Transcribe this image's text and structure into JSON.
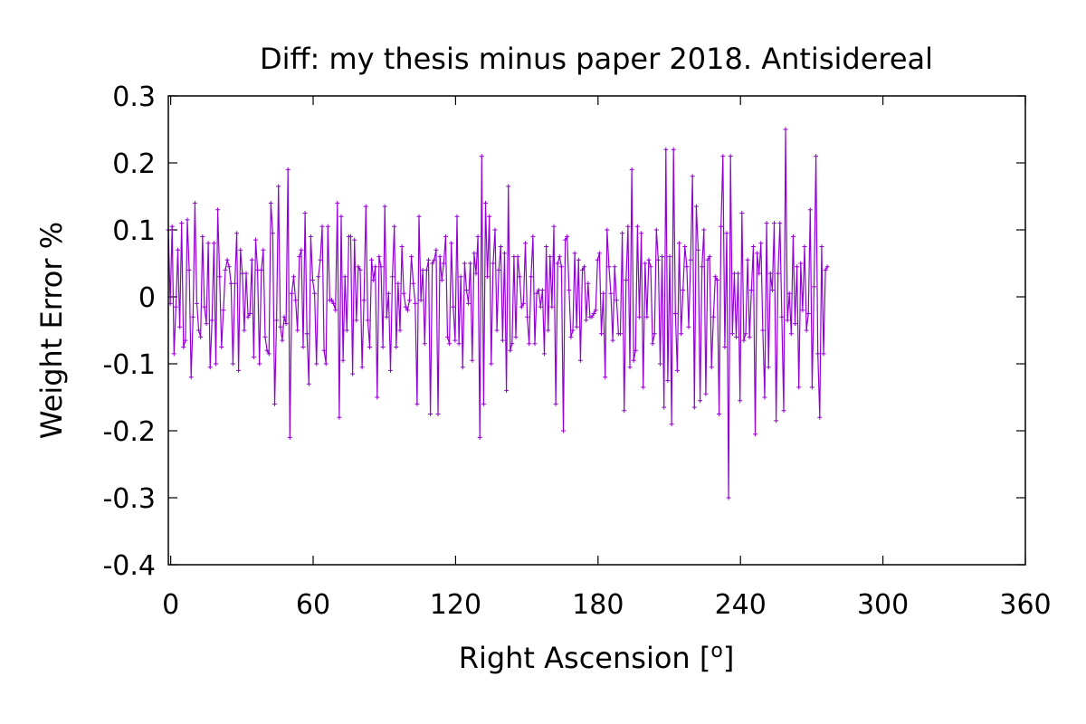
{
  "chart_data": {
    "type": "line",
    "title": "Diff:  my thesis minus paper 2018. Antisidereal",
    "xlabel_main": "Right Ascension [",
    "xlabel_sup": "o",
    "xlabel_end": "]",
    "ylabel": "Weight Error %",
    "xlim": [
      -1,
      360
    ],
    "ylim": [
      -0.4,
      0.3
    ],
    "x_ticks": [
      0,
      60,
      120,
      180,
      240,
      300,
      360
    ],
    "y_ticks": [
      -0.4,
      -0.3,
      -0.2,
      -0.1,
      0,
      0.1,
      0.2,
      0.3
    ],
    "x_tick_labels": [
      "0",
      "60",
      "120",
      "180",
      "240",
      "300",
      "360"
    ],
    "y_tick_labels": [
      "-0.4",
      "-0.3",
      "-0.2",
      "-0.1",
      "0",
      "0.1",
      "0.2",
      "0.3"
    ],
    "grid": false,
    "series": [
      {
        "color": "#9400d3",
        "marker": "plus",
        "x_start": -1,
        "x_step": 0.8,
        "values": [
          0.1,
          -0.01,
          0.105,
          -0.085,
          -0.015,
          0.07,
          -0.045,
          0.11,
          -0.075,
          -0.065,
          0.115,
          0.04,
          -0.12,
          -0.03,
          0.14,
          -0.01,
          -0.05,
          -0.06,
          0.09,
          -0.015,
          -0.04,
          0.08,
          -0.105,
          -0.035,
          0.08,
          -0.1,
          0.13,
          0.03,
          -0.075,
          -0.02,
          0.04,
          0.055,
          0.045,
          0.02,
          -0.1,
          0.02,
          0.095,
          -0.11,
          0.07,
          0.035,
          -0.05,
          0.035,
          -0.03,
          -0.025,
          0.055,
          -0.09,
          0.085,
          0.04,
          -0.1,
          0.04,
          0.07,
          -0.06,
          -0.08,
          -0.085,
          0.14,
          0.095,
          -0.16,
          -0.035,
          0.165,
          -0.045,
          -0.065,
          -0.03,
          -0.04,
          0.19,
          -0.21,
          0.005,
          0.03,
          -0.005,
          -0.05,
          0.06,
          0.07,
          -0.075,
          0.125,
          -0.055,
          -0.13,
          0.09,
          0.025,
          0.005,
          -0.1,
          0.03,
          0.055,
          0.105,
          -0.08,
          -0.1,
          0.105,
          -0.005,
          -0.005,
          -0.01,
          -0.02,
          0.14,
          -0.18,
          0.12,
          -0.095,
          0.03,
          -0.05,
          0.09,
          0.09,
          -0.115,
          0.085,
          -0.035,
          0.045,
          0.04,
          -0.105,
          -0.005,
          0.135,
          -0.035,
          -0.075,
          0.055,
          0.025,
          0.045,
          -0.15,
          0.06,
          0.045,
          -0.075,
          0.135,
          -0.03,
          0.005,
          -0.11,
          0.03,
          0.105,
          -0.075,
          0.02,
          -0.05,
          0.075,
          0.005,
          -0.015,
          -0.02,
          -0.005,
          0.06,
          0.02,
          -0.01,
          -0.16,
          0.12,
          -0.005,
          0.04,
          -0.07,
          0.04,
          0.055,
          -0.175,
          0.05,
          0.055,
          0.07,
          -0.175,
          0.06,
          0.025,
          0.05,
          0.09,
          -0.06,
          -0.07,
          0.08,
          -0.015,
          -0.065,
          0.12,
          -0.07,
          0.03,
          -0.105,
          0.05,
          0.01,
          -0.01,
          0.05,
          -0.095,
          0.065,
          0.035,
          0.09,
          -0.21,
          0.21,
          -0.16,
          0.14,
          0.03,
          0.12,
          -0.1,
          0.05,
          0.1,
          -0.05,
          0.04,
          0.075,
          -0.065,
          0.065,
          -0.14,
          0.165,
          -0.08,
          -0.07,
          0.06,
          -0.06,
          0.06,
          0.03,
          -0.015,
          -0.01,
          0.08,
          -0.03,
          -0.07,
          0.03,
          0.09,
          -0.07,
          0.005,
          0.01,
          -0.015,
          0.01,
          -0.085,
          0.075,
          -0.05,
          0.06,
          -0.015,
          0.105,
          -0.16,
          0.05,
          0.06,
          0.045,
          -0.2,
          0.085,
          0.09,
          0.01,
          -0.06,
          -0.05,
          0.065,
          -0.045,
          0.055,
          -0.095,
          0.04,
          0.045,
          -0.035,
          0.02,
          -0.03,
          -0.03,
          -0.025,
          -0.02,
          0.055,
          0.065,
          -0.055,
          0.005,
          -0.12,
          0.1,
          0.045,
          0.005,
          -0.065,
          0.045,
          -0.005,
          -0.055,
          -0.055,
          0.095,
          -0.17,
          0.025,
          0.105,
          -0.105,
          0.19,
          -0.095,
          -0.08,
          0.105,
          -0.03,
          0.095,
          -0.135,
          0.05,
          -0.03,
          0.055,
          0.045,
          -0.07,
          -0.055,
          0.1,
          0.055,
          -0.1,
          0.06,
          -0.165,
          0.22,
          -0.125,
          0.06,
          -0.19,
          0.22,
          -0.025,
          -0.11,
          0.08,
          -0.055,
          0.01,
          0.075,
          0.045,
          -0.045,
          0.055,
          0.18,
          -0.165,
          0.135,
          0.07,
          -0.155,
          0.045,
          0.1,
          -0.145,
          0.055,
          0.06,
          -0.105,
          -0.03,
          0.03,
          0.025,
          -0.175,
          0.105,
          0.21,
          -0.075,
          0.095,
          -0.3,
          0.21,
          -0.055,
          0.035,
          -0.06,
          0.035,
          -0.155,
          0.125,
          -0.065,
          -0.055,
          0.055,
          -0.06,
          0.01,
          0.075,
          -0.205,
          0.065,
          0.035,
          0.08,
          -0.05,
          -0.15,
          0.11,
          -0.105,
          0.035,
          0.01,
          0.11,
          -0.185,
          0.035,
          0.11,
          -0.03,
          -0.17,
          0.25,
          -0.035,
          0.005,
          -0.055,
          0.09,
          -0.04,
          0.045,
          -0.135,
          0.05,
          -0.02,
          0.075,
          -0.05,
          -0.025,
          0.13,
          -0.135,
          0.015,
          0.21,
          -0.085,
          -0.18,
          0.075,
          -0.085,
          0.04,
          0.045
        ]
      }
    ]
  }
}
